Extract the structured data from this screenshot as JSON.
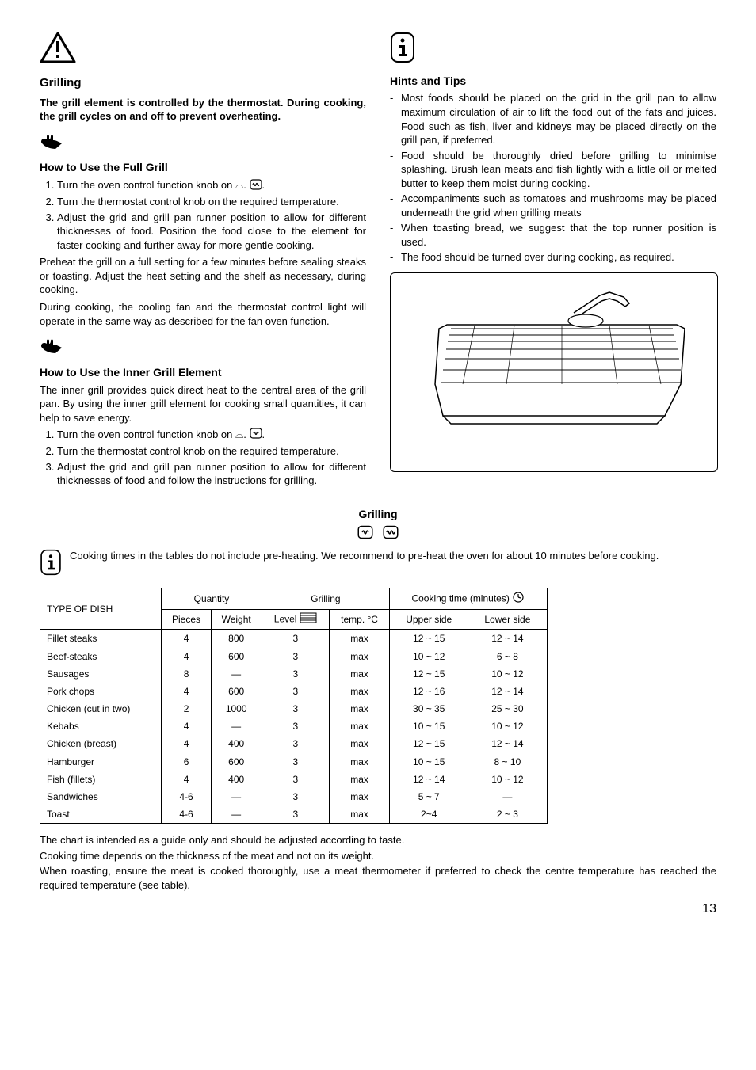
{
  "left": {
    "heading_main": "Grilling",
    "warn_text": "The grill element is controlled by the thermostat. During cooking, the grill cycles on and off to prevent overheating.",
    "how_title": "How to Use the Full Grill",
    "steps": [
      "Turn the oven control function knob on ⌓.",
      "Turn the thermostat control knob on the required temperature.",
      "Adjust the grid and grill pan runner position to allow for different thicknesses of food. Position the food close to the element for faster cooking and further away for more gentle cooking."
    ],
    "after_steps_1": "Preheat the grill on a full setting for a few minutes before sealing steaks or toasting. Adjust the heat setting and the shelf as necessary, during cooking.",
    "after_steps_2": "During cooking, the cooling fan and the thermostat control light will operate in the same way as described for the fan oven function.",
    "inner_title": "How to Use the Inner Grill Element",
    "inner_p": "The inner grill provides quick direct heat to the central area of the grill pan. By using the inner grill element for cooking small quantities, it can help to save energy.",
    "inner_steps": [
      "Turn the oven control function knob on ⌓.",
      "Turn the thermostat control knob on the required temperature.",
      "Adjust the grid and grill pan runner position to allow for different thicknesses of food and follow the instructions for grilling."
    ]
  },
  "right": {
    "hints_title": "Hints and Tips",
    "hints": [
      "Most foods should be placed on the grid in the grill pan to allow maximum circulation of air to lift the food out of the fats and juices. Food such as fish, liver and kidneys may be placed directly on the grill pan, if preferred.",
      "Food should be thoroughly dried before grilling to minimise splashing. Brush lean meats and fish lightly with a little oil or melted butter to keep them moist during cooking.",
      "Accompaniments such as tomatoes and mushrooms may be placed underneath the grid when grilling meats",
      "When toasting bread, we suggest that the top runner position is used.",
      "The food should be turned over during cooking, as required."
    ]
  },
  "table_section": {
    "title": "Grilling",
    "note": "Cooking times in the tables do not include pre-heating. We recommend to pre-heat the oven for about 10 minutes before cooking.",
    "headers": {
      "dish": "TYPE OF DISH",
      "quantity": "Quantity",
      "grilling": "Grilling",
      "cooktime": "Cooking time (minutes)",
      "pieces": "Pieces",
      "weight": "Weight",
      "level": "Level",
      "temp": "temp. °C",
      "upper": "Upper side",
      "lower": "Lower side"
    },
    "rows": [
      {
        "dish": "Fillet steaks",
        "pieces": "4",
        "weight": "800",
        "level": "3",
        "temp": "max",
        "upper": "12 ~ 15",
        "lower": "12 ~ 14"
      },
      {
        "dish": "Beef-steaks",
        "pieces": "4",
        "weight": "600",
        "level": "3",
        "temp": "max",
        "upper": "10 ~ 12",
        "lower": "6 ~ 8"
      },
      {
        "dish": "Sausages",
        "pieces": "8",
        "weight": "—",
        "level": "3",
        "temp": "max",
        "upper": "12 ~ 15",
        "lower": "10 ~ 12"
      },
      {
        "dish": "Pork chops",
        "pieces": "4",
        "weight": "600",
        "level": "3",
        "temp": "max",
        "upper": "12 ~ 16",
        "lower": "12 ~ 14"
      },
      {
        "dish": "Chicken (cut in two)",
        "pieces": "2",
        "weight": "1000",
        "level": "3",
        "temp": "max",
        "upper": "30 ~ 35",
        "lower": "25 ~ 30"
      },
      {
        "dish": "Kebabs",
        "pieces": "4",
        "weight": "—",
        "level": "3",
        "temp": "max",
        "upper": "10 ~ 15",
        "lower": "10 ~ 12"
      },
      {
        "dish": "Chicken (breast)",
        "pieces": "4",
        "weight": "400",
        "level": "3",
        "temp": "max",
        "upper": "12 ~ 15",
        "lower": "12 ~ 14"
      },
      {
        "dish": "Hamburger",
        "pieces": "6",
        "weight": "600",
        "level": "3",
        "temp": "max",
        "upper": "10 ~ 15",
        "lower": "8 ~ 10"
      },
      {
        "dish": "Fish (fillets)",
        "pieces": "4",
        "weight": "400",
        "level": "3",
        "temp": "max",
        "upper": "12 ~ 14",
        "lower": "10 ~ 12"
      },
      {
        "dish": "Sandwiches",
        "pieces": "4-6",
        "weight": "—",
        "level": "3",
        "temp": "max",
        "upper": "5 ~ 7",
        "lower": "—"
      },
      {
        "dish": "Toast",
        "pieces": "4-6",
        "weight": "—",
        "level": "3",
        "temp": "max",
        "upper": "2~4",
        "lower": "2 ~ 3"
      }
    ]
  },
  "footer": {
    "l1": "The chart is intended as a guide only and should be adjusted according to taste.",
    "l2": "Cooking time depends on the thickness of the meat and not on its weight.",
    "l3": "When roasting, ensure the meat is cooked thoroughly, use a meat thermometer if preferred to check the centre temperature has reached the required temperature (see table)."
  },
  "page": "13"
}
